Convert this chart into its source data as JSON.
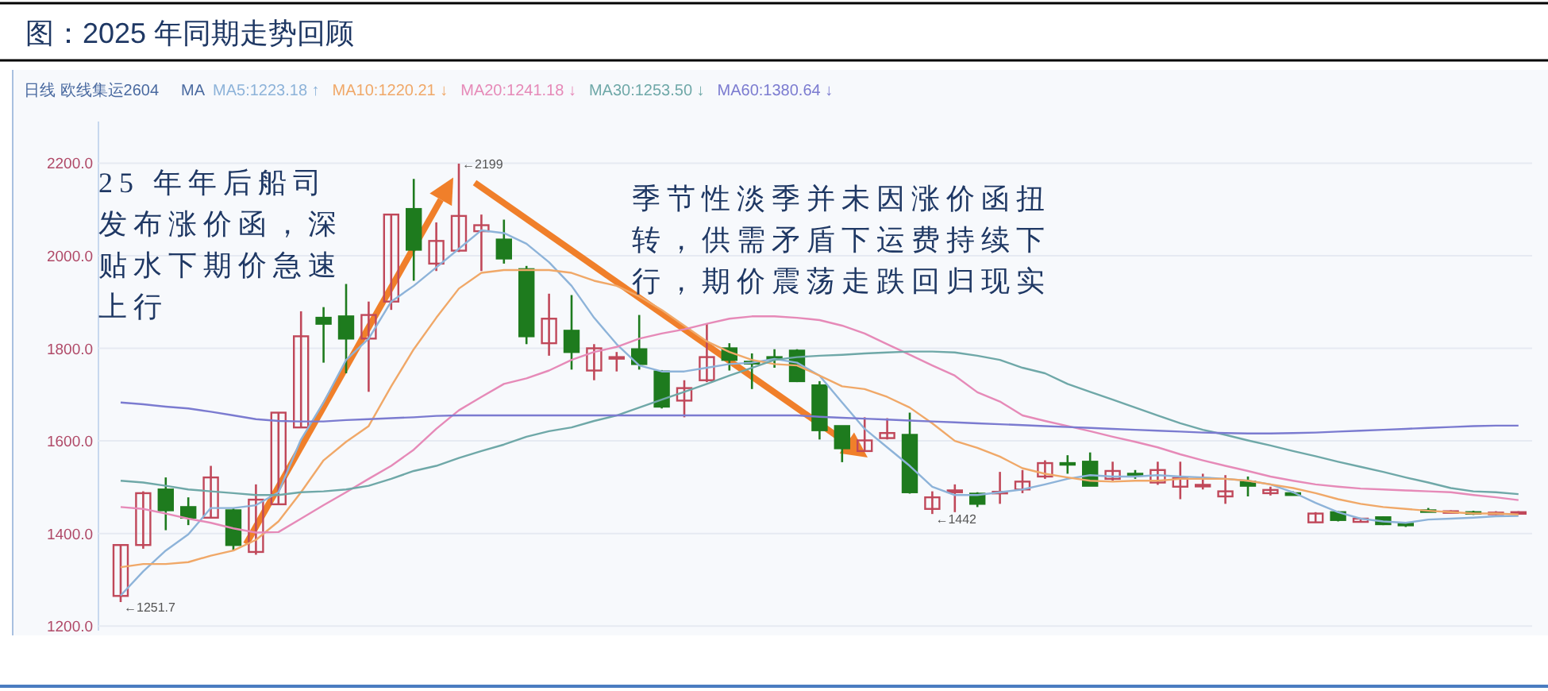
{
  "chart_data": {
    "type": "candlestick",
    "title": "图：2025 年同期走势回顾",
    "subtitle": "日线 欧线集运2604",
    "legend_title": "MA",
    "categories": [
      null,
      null,
      null,
      null,
      null,
      null,
      null,
      null,
      null,
      null,
      null,
      null,
      null,
      null,
      null,
      null,
      null,
      null,
      null,
      null,
      null,
      null,
      null,
      null,
      null,
      null,
      null,
      null,
      null,
      null,
      null,
      null,
      null,
      null,
      null,
      null,
      null,
      null,
      null,
      null,
      null,
      null,
      null,
      null,
      null,
      null,
      null,
      null,
      null,
      null,
      null,
      null,
      null,
      null,
      null,
      null,
      null,
      null,
      null,
      null,
      null,
      null,
      null
    ],
    "ohlc": [
      [
        1265,
        1375,
        1251.7,
        1375
      ],
      [
        1375,
        1491,
        1367,
        1487
      ],
      [
        1495,
        1521,
        1407,
        1450
      ],
      [
        1457,
        1478,
        1418,
        1434
      ],
      [
        1434,
        1546,
        1432,
        1521
      ],
      [
        1450,
        1455,
        1363,
        1375
      ],
      [
        1360,
        1506,
        1354,
        1473
      ],
      [
        1463,
        1661,
        1463,
        1661
      ],
      [
        1629,
        1880,
        1629,
        1826
      ],
      [
        1866,
        1889,
        1769,
        1853
      ],
      [
        1869,
        1939,
        1746,
        1821
      ],
      [
        1821,
        1901,
        1706,
        1872
      ],
      [
        1901,
        2089,
        1883,
        2089
      ],
      [
        2101,
        2166,
        1946,
        2013
      ],
      [
        1983,
        2072,
        1967,
        2032
      ],
      [
        2011,
        2199,
        2008,
        2086
      ],
      [
        2053,
        2089,
        1967,
        2066
      ],
      [
        2035,
        2078,
        1983,
        1994
      ],
      [
        1971,
        1978,
        1809,
        1826
      ],
      [
        1811,
        1918,
        1784,
        1864
      ],
      [
        1838,
        1915,
        1754,
        1792
      ],
      [
        1752,
        1809,
        1731,
        1800
      ],
      [
        1779,
        1792,
        1750,
        1781
      ],
      [
        1798,
        1872,
        1754,
        1766
      ],
      [
        1750,
        1753,
        1670,
        1674
      ],
      [
        1687,
        1731,
        1651,
        1714
      ],
      [
        1731,
        1853,
        1727,
        1781
      ],
      [
        1800,
        1811,
        1752,
        1775
      ],
      [
        1771,
        1789,
        1712,
        1767
      ],
      [
        1781,
        1798,
        1758,
        1777
      ],
      [
        1795,
        1798,
        1727,
        1729
      ],
      [
        1720,
        1729,
        1603,
        1623
      ],
      [
        1632,
        1632,
        1554,
        1584
      ],
      [
        1578,
        1651,
        1578,
        1601
      ],
      [
        1606,
        1649,
        1603,
        1617
      ],
      [
        1613,
        1661,
        1486,
        1489
      ],
      [
        1453,
        1491,
        1442,
        1478
      ],
      [
        1489,
        1506,
        1446,
        1493
      ],
      [
        1486,
        1489,
        1457,
        1464
      ],
      [
        1487,
        1533,
        1464,
        1490
      ],
      [
        1495,
        1537,
        1487,
        1512
      ],
      [
        1523,
        1558,
        1518,
        1552
      ],
      [
        1552,
        1569,
        1529,
        1549
      ],
      [
        1555,
        1575,
        1503,
        1503
      ],
      [
        1518,
        1555,
        1514,
        1535
      ],
      [
        1529,
        1537,
        1518,
        1526
      ],
      [
        1510,
        1555,
        1505,
        1537
      ],
      [
        1501,
        1555,
        1474,
        1520
      ],
      [
        1502,
        1529,
        1495,
        1505
      ],
      [
        1480,
        1526,
        1464,
        1491
      ],
      [
        1512,
        1523,
        1480,
        1503
      ],
      [
        1487,
        1501,
        1482,
        1494
      ],
      [
        1487,
        1491,
        1483,
        1483
      ],
      [
        1424,
        1446,
        1424,
        1443
      ],
      [
        1446,
        1448,
        1426,
        1429
      ],
      [
        1425,
        1432,
        1425,
        1432
      ],
      [
        1435,
        1437,
        1418,
        1420
      ],
      [
        1421,
        1423,
        1414,
        1419
      ],
      [
        1450,
        1455,
        1447,
        1448
      ],
      [
        1446,
        1450,
        1445,
        1448
      ],
      [
        1446,
        1449,
        1440,
        1444
      ],
      [
        1442,
        1448,
        1440,
        1445
      ],
      [
        1443,
        1448,
        1441,
        1446
      ]
    ],
    "colors": [
      "#c0485a",
      "#c0485a",
      "#1e7b1e",
      "#1e7b1e",
      "#c0485a",
      "#1e7b1e",
      "#c0485a",
      "#c0485a",
      "#c0485a",
      "#1e7b1e",
      "#1e7b1e",
      "#c0485a",
      "#c0485a",
      "#1e7b1e",
      "#c0485a",
      "#c0485a",
      "#c0485a",
      "#1e7b1e",
      "#1e7b1e",
      "#c0485a",
      "#1e7b1e",
      "#c0485a",
      "#c0485a",
      "#1e7b1e",
      "#1e7b1e",
      "#c0485a",
      "#c0485a",
      "#1e7b1e",
      "#1e7b1e",
      "#1e7b1e",
      "#1e7b1e",
      "#1e7b1e",
      "#1e7b1e",
      "#c0485a",
      "#c0485a",
      "#1e7b1e",
      "#c0485a",
      "#c0485a",
      "#1e7b1e",
      "#c0485a",
      "#c0485a",
      "#c0485a",
      "#1e7b1e",
      "#1e7b1e",
      "#c0485a",
      "#1e7b1e",
      "#c0485a",
      "#c0485a",
      "#c0485a",
      "#c0485a",
      "#1e7b1e",
      "#c0485a",
      "#1e7b1e",
      "#c0485a",
      "#1e7b1e",
      "#c0485a",
      "#1e7b1e",
      "#1e7b1e",
      "#1e7b1e",
      "#c0485a",
      "#1e7b1e",
      "#c0485a",
      "#c0485a"
    ],
    "series": [
      {
        "type": "line",
        "name": "MA5:1223.18 ↑",
        "color": "#8db3d9",
        "values": [
          1266,
          1318,
          1363,
          1398,
          1455,
          1455,
          1461,
          1489,
          1603,
          1683,
          1775,
          1821,
          1901,
          1935,
          1975,
          2015,
          2055,
          2049,
          2026,
          1986,
          1935,
          1866,
          1809,
          1763,
          1750,
          1750,
          1758,
          1766,
          1769,
          1777,
          1769,
          1741,
          1683,
          1626,
          1586,
          1546,
          1501,
          1483,
          1483,
          1489,
          1495,
          1506,
          1518,
          1526,
          1523,
          1523,
          1526,
          1523,
          1521,
          1518,
          1514,
          1506,
          1489,
          1466,
          1446,
          1432,
          1426,
          1423,
          1430,
          1432,
          1434,
          1437,
          1438
        ]
      },
      {
        "type": "line",
        "name": "MA10:1220.21 ↓",
        "color": "#f0a868",
        "values": [
          1327,
          1334,
          1334,
          1338,
          1352,
          1363,
          1386,
          1426,
          1489,
          1558,
          1598,
          1632,
          1718,
          1798,
          1866,
          1929,
          1963,
          1969,
          1969,
          1969,
          1963,
          1946,
          1935,
          1912,
          1883,
          1849,
          1815,
          1792,
          1775,
          1766,
          1763,
          1741,
          1718,
          1712,
          1695,
          1672,
          1638,
          1600,
          1585,
          1566,
          1541,
          1529,
          1521,
          1514,
          1512,
          1514,
          1514,
          1518,
          1518,
          1518,
          1514,
          1506,
          1498,
          1487,
          1474,
          1464,
          1457,
          1453,
          1449,
          1446,
          1443,
          1443,
          1441
        ]
      },
      {
        "type": "line",
        "name": "MA20:1241.18 ↓",
        "color": "#e68ab8",
        "values": [
          1457,
          1453,
          1443,
          1432,
          1423,
          1411,
          1402,
          1403,
          1432,
          1461,
          1489,
          1518,
          1546,
          1581,
          1626,
          1666,
          1695,
          1723,
          1735,
          1752,
          1775,
          1792,
          1803,
          1821,
          1832,
          1841,
          1853,
          1864,
          1869,
          1869,
          1866,
          1861,
          1849,
          1832,
          1809,
          1786,
          1763,
          1741,
          1705,
          1685,
          1655,
          1643,
          1632,
          1621,
          1609,
          1598,
          1586,
          1571,
          1558,
          1546,
          1535,
          1523,
          1514,
          1506,
          1501,
          1497,
          1495,
          1493,
          1491,
          1489,
          1483,
          1478,
          1472
        ]
      },
      {
        "type": "line",
        "name": "MA30:1253.50 ↓",
        "color": "#6fa8a8",
        "values": [
          1514,
          1510,
          1503,
          1495,
          1491,
          1487,
          1483,
          1483,
          1489,
          1491,
          1495,
          1503,
          1518,
          1535,
          1546,
          1563,
          1578,
          1592,
          1609,
          1621,
          1629,
          1643,
          1655,
          1672,
          1689,
          1706,
          1723,
          1741,
          1758,
          1775,
          1781,
          1784,
          1786,
          1789,
          1791,
          1793,
          1793,
          1791,
          1784,
          1775,
          1758,
          1746,
          1723,
          1706,
          1689,
          1672,
          1655,
          1638,
          1624,
          1613,
          1601,
          1590,
          1578,
          1567,
          1555,
          1544,
          1533,
          1521,
          1510,
          1498,
          1491,
          1489,
          1485
        ]
      },
      {
        "type": "line",
        "name": "MA60:1380.64 ↓",
        "color": "#7b7bd0",
        "values": [
          1683,
          1679,
          1674,
          1670,
          1663,
          1655,
          1647,
          1643,
          1642,
          1642,
          1645,
          1647,
          1649,
          1651,
          1654,
          1655,
          1655,
          1655,
          1655,
          1655,
          1655,
          1655,
          1655,
          1655,
          1655,
          1655,
          1655,
          1655,
          1655,
          1655,
          1655,
          1652,
          1650,
          1648,
          1646,
          1644,
          1642,
          1640,
          1638,
          1636,
          1634,
          1632,
          1630,
          1628,
          1626,
          1624,
          1622,
          1620,
          1618,
          1617,
          1616,
          1616,
          1617,
          1618,
          1620,
          1622,
          1624,
          1626,
          1628,
          1630,
          1632,
          1633,
          1633
        ]
      }
    ],
    "ylim": [
      1190,
      2290
    ],
    "yticks": [
      {
        "value": 1200,
        "label": "1200.0"
      },
      {
        "value": 1400,
        "label": "1400.0"
      },
      {
        "value": 1600,
        "label": "1600.0"
      },
      {
        "value": 1800,
        "label": "1800.0"
      },
      {
        "value": 2000,
        "label": "2000.0"
      },
      {
        "value": 2200,
        "label": "2200.0"
      }
    ],
    "grid": "y",
    "legend": "top left",
    "tick_labels": "y",
    "annotations": [
      "25 年年后船司发布涨价函，深贴水下期价急速上行",
      "季节性淡季并未因涨价函扭转，供需矛盾下运费持续下行，期价震荡走跌回归现实",
      "←2199",
      "←1251.7",
      {
        "text": "←1442",
        "y": 1442
      }
    ]
  }
}
